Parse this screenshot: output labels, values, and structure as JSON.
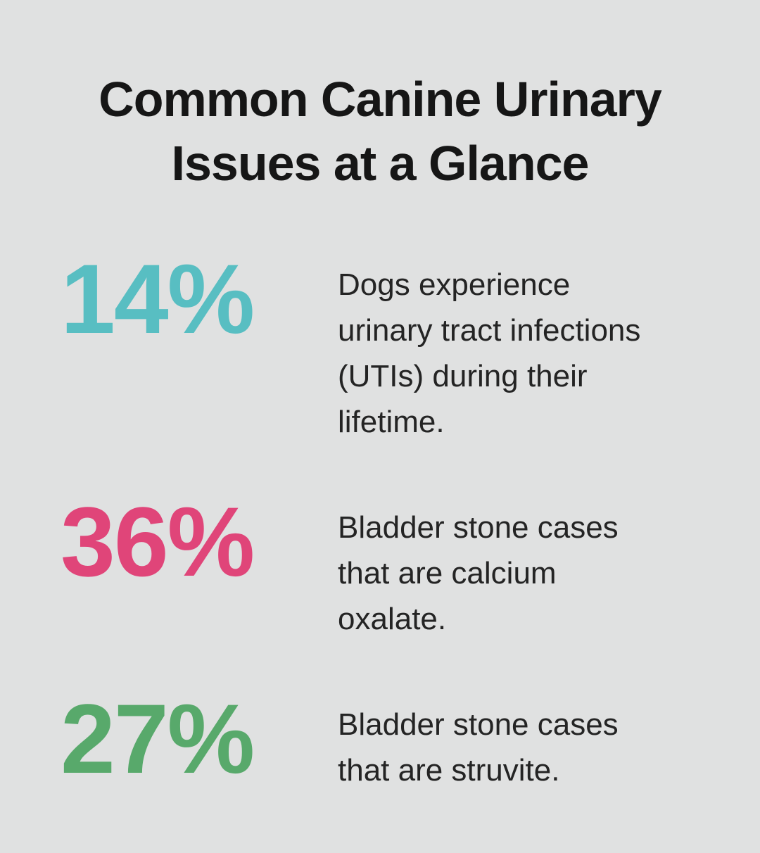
{
  "page": {
    "background_color": "#E0E1E1",
    "title_color": "#161616",
    "body_text_color": "#242424"
  },
  "title": {
    "full": "Common Canine Urinary Issues at a Glance",
    "lines": [
      "Common Canine Urinary",
      "Issues at a Glance"
    ]
  },
  "stats": [
    {
      "value": "14%",
      "color": "#58BEC2",
      "description": "Dogs experience urinary tract infections (UTIs) during their lifetime.",
      "lines": [
        "Dogs experience",
        "urinary tract infections",
        "(UTIs) during their",
        "lifetime."
      ]
    },
    {
      "value": "36%",
      "color": "#E04579",
      "description": "Bladder stone cases that are calcium oxalate.",
      "lines": [
        "Bladder stone cases",
        "that are calcium",
        "oxalate."
      ]
    },
    {
      "value": "27%",
      "color": "#58A96B",
      "description": "Bladder stone cases that are struvite.",
      "lines": [
        "Bladder stone cases",
        "that are struvite."
      ]
    }
  ],
  "chart_data": {
    "type": "table",
    "title": "Common Canine Urinary Issues at a Glance",
    "categories": [
      "Dogs experience urinary tract infections (UTIs) during their lifetime.",
      "Bladder stone cases that are calcium oxalate.",
      "Bladder stone cases that are struvite."
    ],
    "values": [
      14,
      36,
      27
    ],
    "unit": "%",
    "series_colors": [
      "#58BEC2",
      "#E04579",
      "#58A96B"
    ],
    "legend": "none",
    "layout": "stat-list infographic, numbers left, descriptions right"
  }
}
